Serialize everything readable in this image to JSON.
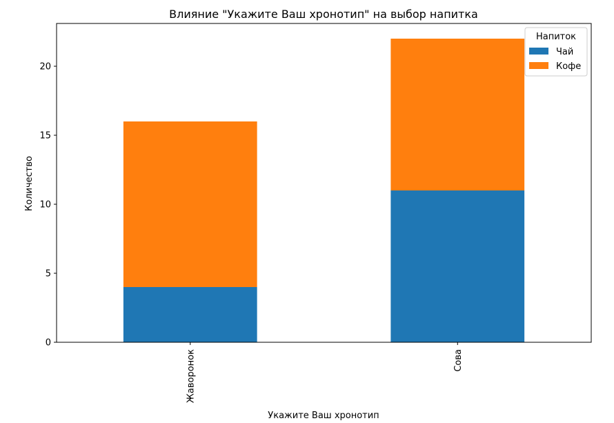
{
  "chart_data": {
    "type": "bar",
    "stacked": true,
    "title": "Влияние \"Укажите Ваш хронотип\" на выбор напитка",
    "xlabel": "Укажите Ваш хронотип",
    "ylabel": "Количество",
    "categories": [
      "Жаворонок",
      "Сова"
    ],
    "series": [
      {
        "name": "Чай",
        "values": [
          4,
          11
        ],
        "color": "#1f77b4"
      },
      {
        "name": "Кофе",
        "values": [
          12,
          11
        ],
        "color": "#ff7f0e"
      }
    ],
    "ylim": [
      0,
      23.1
    ],
    "yticks": [
      0,
      5,
      10,
      15,
      20
    ],
    "x_tick_rotation": "vertical",
    "grid": false,
    "legend": {
      "title": "Напиток",
      "placement": "top-right"
    }
  }
}
